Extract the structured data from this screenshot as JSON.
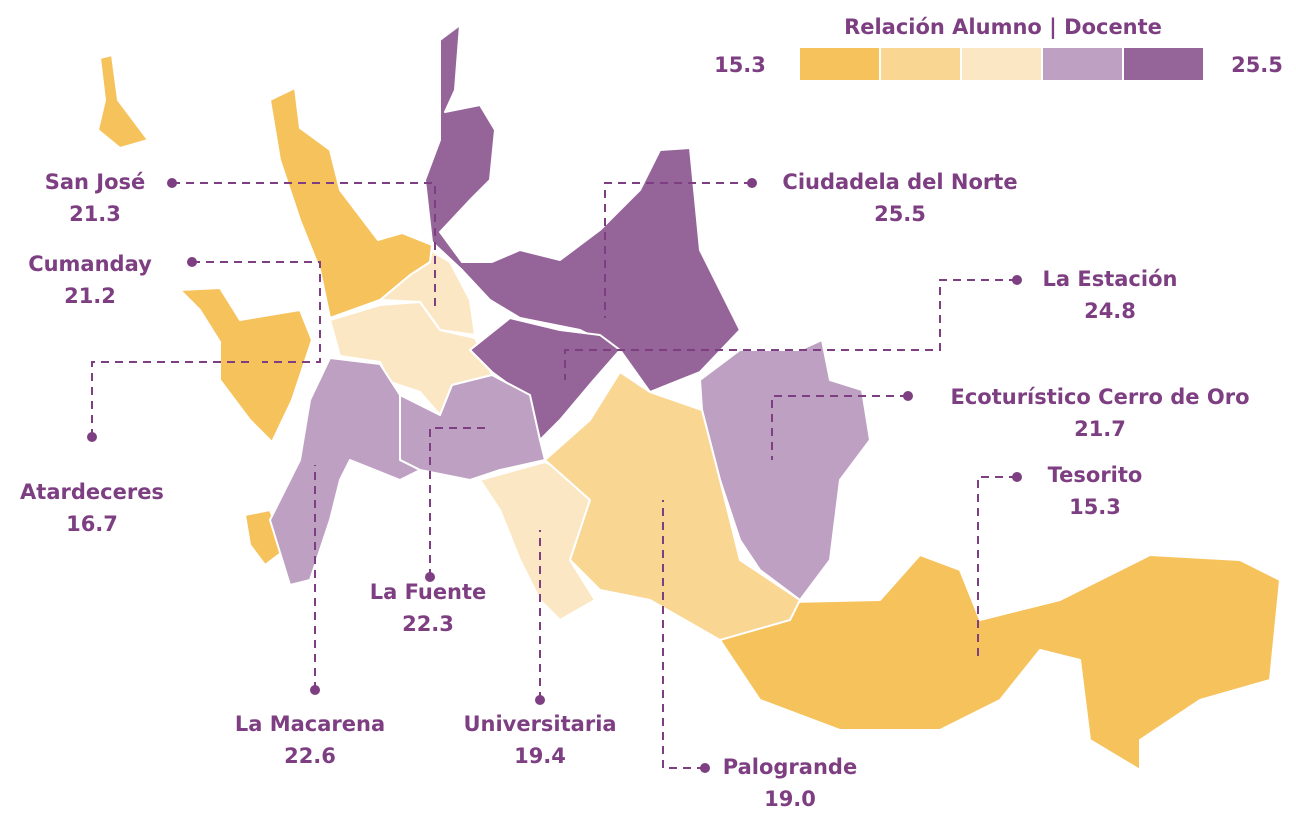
{
  "legend": {
    "title": "Relación Alumno | Docente",
    "min": 15.3,
    "max": 25.5,
    "colors": [
      "#f6c25c",
      "#f9d692",
      "#fce7c5",
      "#bea0c3",
      "#95659a"
    ]
  },
  "regions": [
    {
      "name": "San José",
      "value": 21.3
    },
    {
      "name": "Cumanday",
      "value": 21.2
    },
    {
      "name": "Atardeceres",
      "value": 16.7
    },
    {
      "name": "Ciudadela del Norte",
      "value": 25.5
    },
    {
      "name": "La Estación",
      "value": 24.8
    },
    {
      "name": "Ecoturístico Cerro de Oro",
      "value": 21.7
    },
    {
      "name": "Tesorito",
      "value": 15.3
    },
    {
      "name": "La Fuente",
      "value": 22.3
    },
    {
      "name": "La Macarena",
      "value": 22.6
    },
    {
      "name": "Universitaria",
      "value": 19.4
    },
    {
      "name": "Palogrande",
      "value": 19.0,
      "value_label": "19.0"
    }
  ]
}
